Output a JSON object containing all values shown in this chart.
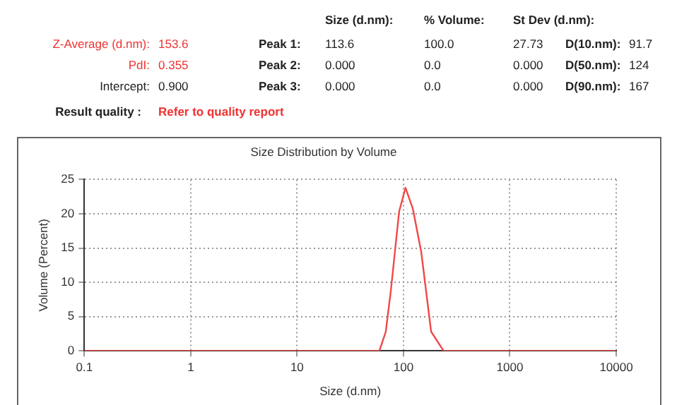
{
  "chart_data": {
    "type": "line",
    "title": "Size Distribution by Volume",
    "xlabel": "Size (d.nm)",
    "ylabel": "Volume (Percent)",
    "x": [
      0.1,
      59.4,
      68.2,
      75.9,
      91.0,
      104.5,
      122.7,
      147,
      182,
      238,
      10000
    ],
    "series": [
      {
        "color": "#f04848",
        "values": [
          0,
          0,
          2.8,
          8.6,
          20.3,
          23.8,
          20.7,
          14.4,
          2.8,
          0,
          0
        ]
      }
    ],
    "log": "x",
    "xlim": [
      0.1,
      10000
    ],
    "xticks": [
      0.1,
      1,
      10,
      100,
      1000,
      10000
    ],
    "ylim": [
      0,
      25
    ],
    "yticks": [
      0,
      5,
      10,
      15,
      20,
      25
    ],
    "grid": true,
    "legend": false,
    "marker": "none",
    "line_style": "solid",
    "annotations": [
      "Size (d.nm):",
      "% Volume:",
      "St Dev (d.nm):",
      "Z-Average (d.nm):",
      "153.6",
      "Peak 1:",
      "113.6",
      "100.0",
      "27.73",
      "D(10.nm):",
      "91.7",
      "PdI:",
      "0.355",
      "Peak 2:",
      "0.000",
      "0.0",
      "0.000",
      "D(50.nm):",
      "124",
      "Intercept:",
      "0.900",
      "Peak 3:",
      "0.000",
      "0.0",
      "0.000",
      "D(90.nm):",
      "167",
      "Result quality :",
      "Refer to quality report"
    ]
  }
}
